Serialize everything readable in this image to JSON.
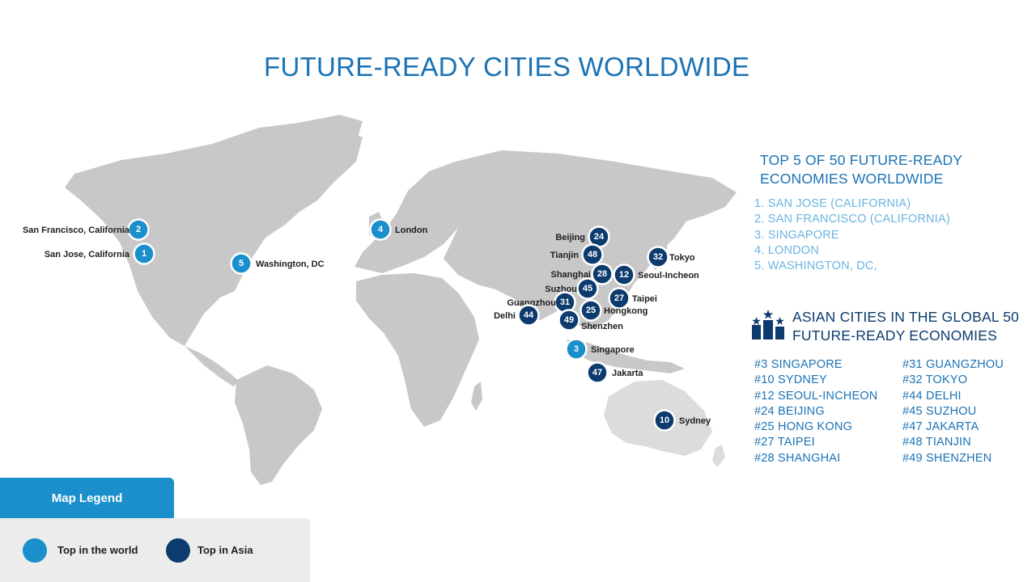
{
  "title": "FUTURE-READY CITIES WORLDWIDE",
  "top5": {
    "heading": "TOP 5 OF 50 FUTURE-READY ECONOMIES WORLDWIDE",
    "items": [
      "1. SAN JOSE (CALIFORNIA)",
      "2. SAN FRANCISCO (CALIFORNIA)",
      "3. SINGAPORE",
      "4. LONDON",
      "5. WASHINGTON, DC,"
    ]
  },
  "asian": {
    "heading": "ASIAN CITIES IN THE GLOBAL 50 FUTURE-READY  ECONOMIES",
    "icon": "podium-stars-icon",
    "left_column": [
      "#3 SINGAPORE",
      "#10 SYDNEY",
      "#12 SEOUL-INCHEON",
      "#24 BEIJING",
      "#25 HONG KONG",
      "#27 TAIPEI",
      "#28 SHANGHAI"
    ],
    "right_column": [
      "#31 GUANGZHOU",
      "#32 TOKYO",
      "#44 DELHI",
      "#45 SUZHOU",
      "#47 JAKARTA",
      "#48 TIANJIN",
      "#49 SHENZHEN"
    ]
  },
  "legend": {
    "tab_label": "Map Legend",
    "world_label": "Top in the world",
    "asia_label": "Top in Asia"
  },
  "colors": {
    "world": "#1b8fcc",
    "asia": "#0d3b6e",
    "title": "#1b73b4",
    "land": "#c8c8c8"
  },
  "map_pins": [
    {
      "rank": "2",
      "city": "San Francisco, California",
      "group": "world"
    },
    {
      "rank": "1",
      "city": "San Jose, California",
      "group": "world"
    },
    {
      "rank": "5",
      "city": "Washington, DC",
      "group": "world"
    },
    {
      "rank": "4",
      "city": "London",
      "group": "world"
    },
    {
      "rank": "3",
      "city": "Singapore",
      "group": "world"
    },
    {
      "rank": "24",
      "city": "Beijing",
      "group": "asia"
    },
    {
      "rank": "48",
      "city": "Tianjin",
      "group": "asia"
    },
    {
      "rank": "28",
      "city": "Shanghai",
      "group": "asia"
    },
    {
      "rank": "12",
      "city": "Seoul-Incheon",
      "group": "asia"
    },
    {
      "rank": "32",
      "city": "Tokyo",
      "group": "asia"
    },
    {
      "rank": "45",
      "city": "Suzhou",
      "group": "asia"
    },
    {
      "rank": "27",
      "city": "Taipei",
      "group": "asia"
    },
    {
      "rank": "31",
      "city": "Guangzhou",
      "group": "asia"
    },
    {
      "rank": "25",
      "city": "Hongkong",
      "group": "asia"
    },
    {
      "rank": "44",
      "city": "Delhi",
      "group": "asia"
    },
    {
      "rank": "49",
      "city": "Shenzhen",
      "group": "asia"
    },
    {
      "rank": "47",
      "city": "Jakarta",
      "group": "asia"
    },
    {
      "rank": "10",
      "city": "Sydney",
      "group": "asia"
    }
  ]
}
